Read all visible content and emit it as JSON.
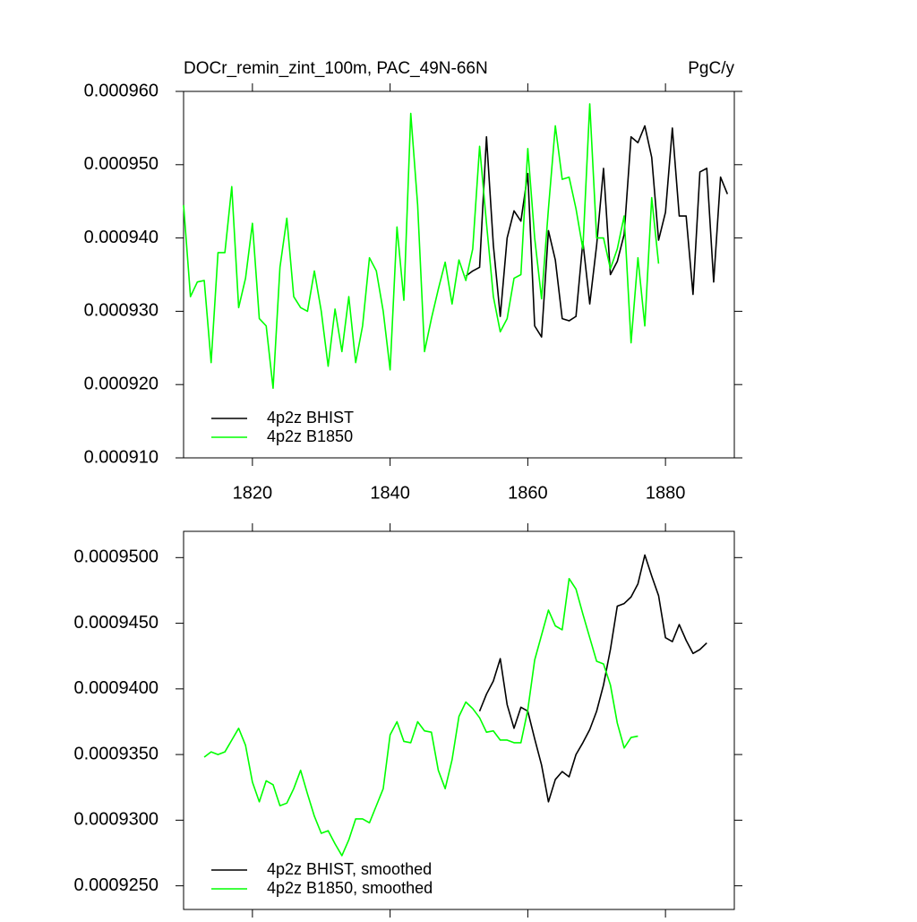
{
  "chart_data": [
    {
      "type": "line",
      "title": "DOCr_remin_zint_100m, PAC_49N-66N",
      "units": "PgC/y",
      "xlim": [
        1810,
        1890
      ],
      "xticks": [
        1820,
        1840,
        1860,
        1880
      ],
      "xtick_labels": true,
      "ylim": [
        0.00091,
        0.00096
      ],
      "yticks": [
        {
          "value": 0.00091,
          "label": "0.000910"
        },
        {
          "value": 0.00092,
          "label": "0.000920"
        },
        {
          "value": 0.00093,
          "label": "0.000930"
        },
        {
          "value": 0.00094,
          "label": "0.000940"
        },
        {
          "value": 0.00095,
          "label": "0.000950"
        },
        {
          "value": 0.00096,
          "label": "0.000960"
        }
      ],
      "legend": "lower left",
      "series": [
        {
          "name": "4p2z BHIST",
          "color": "#000000",
          "x": [
            1851,
            1852,
            1853,
            1854,
            1855,
            1856,
            1857,
            1858,
            1859,
            1860,
            1861,
            1862,
            1863,
            1864,
            1865,
            1866,
            1867,
            1868,
            1869,
            1870,
            1871,
            1872,
            1873,
            1874,
            1875,
            1876,
            1877,
            1878,
            1879,
            1880,
            1881,
            1882,
            1883,
            1884,
            1885,
            1886,
            1887,
            1888,
            1889
          ],
          "values": [
            0.0009348,
            0.0009355,
            0.000936,
            0.0009538,
            0.000939,
            0.0009293,
            0.00094,
            0.0009437,
            0.0009423,
            0.0009488,
            0.000928,
            0.0009265,
            0.000941,
            0.000937,
            0.000929,
            0.0009287,
            0.0009293,
            0.0009395,
            0.000931,
            0.000939,
            0.0009495,
            0.000935,
            0.0009368,
            0.0009405,
            0.0009538,
            0.000953,
            0.0009553,
            0.000951,
            0.0009397,
            0.0009435,
            0.000955,
            0.000943,
            0.000943,
            0.0009323,
            0.000949,
            0.0009495,
            0.000934,
            0.0009483,
            0.000946
          ]
        },
        {
          "name": "4p2z B1850",
          "color": "#00ff00",
          "x": [
            1810,
            1811,
            1812,
            1813,
            1814,
            1815,
            1816,
            1817,
            1818,
            1819,
            1820,
            1821,
            1822,
            1823,
            1824,
            1825,
            1826,
            1827,
            1828,
            1829,
            1830,
            1831,
            1832,
            1833,
            1834,
            1835,
            1836,
            1837,
            1838,
            1839,
            1840,
            1841,
            1842,
            1843,
            1844,
            1845,
            1846,
            1847,
            1848,
            1849,
            1850,
            1851,
            1852,
            1853,
            1854,
            1855,
            1856,
            1857,
            1858,
            1859,
            1860,
            1861,
            1862,
            1863,
            1864,
            1865,
            1866,
            1867,
            1868,
            1869,
            1870,
            1871,
            1872,
            1873,
            1874,
            1875,
            1876,
            1877,
            1878,
            1879
          ],
          "values": [
            0.0009445,
            0.000932,
            0.000934,
            0.0009342,
            0.000923,
            0.000938,
            0.000938,
            0.000947,
            0.0009305,
            0.0009345,
            0.000942,
            0.000929,
            0.000928,
            0.0009195,
            0.000936,
            0.0009427,
            0.000932,
            0.0009305,
            0.00093,
            0.0009355,
            0.00093,
            0.0009225,
            0.0009303,
            0.0009245,
            0.000932,
            0.000923,
            0.000928,
            0.0009373,
            0.0009355,
            0.00093,
            0.000922,
            0.0009415,
            0.0009315,
            0.000957,
            0.0009445,
            0.0009245,
            0.000929,
            0.000933,
            0.0009367,
            0.000931,
            0.000937,
            0.0009342,
            0.0009385,
            0.0009525,
            0.000942,
            0.000932,
            0.0009272,
            0.000929,
            0.0009345,
            0.000935,
            0.0009522,
            0.00094,
            0.0009317,
            0.000944,
            0.0009553,
            0.000948,
            0.0009483,
            0.000944,
            0.0009385,
            0.0009583,
            0.00094,
            0.00094,
            0.0009358,
            0.0009385,
            0.000943,
            0.0009257,
            0.0009373,
            0.000928,
            0.0009455,
            0.0009365
          ]
        }
      ]
    },
    {
      "type": "line",
      "xlim": [
        1810,
        1890
      ],
      "xticks": [
        1820,
        1840,
        1860,
        1880
      ],
      "xtick_labels": false,
      "ylim": [
        0.0009232,
        0.000952
      ],
      "yticks": [
        {
          "value": 0.000925,
          "label": "0.0009250"
        },
        {
          "value": 0.00093,
          "label": "0.0009300"
        },
        {
          "value": 0.000935,
          "label": "0.0009350"
        },
        {
          "value": 0.00094,
          "label": "0.0009400"
        },
        {
          "value": 0.000945,
          "label": "0.0009450"
        },
        {
          "value": 0.00095,
          "label": "0.0009500"
        }
      ],
      "legend": "lower left",
      "series": [
        {
          "name": "4p2z BHIST, smoothed",
          "color": "#000000",
          "x": [
            1853,
            1854,
            1855,
            1856,
            1857,
            1858,
            1859,
            1860,
            1861,
            1862,
            1863,
            1864,
            1865,
            1866,
            1867,
            1868,
            1869,
            1870,
            1871,
            1872,
            1873,
            1874,
            1875,
            1876,
            1877,
            1878,
            1879,
            1880,
            1881,
            1882,
            1883,
            1884,
            1885,
            1886
          ],
          "values": [
            0.0009383,
            0.0009396,
            0.0009406,
            0.0009423,
            0.0009388,
            0.000937,
            0.0009386,
            0.0009383,
            0.0009362,
            0.0009342,
            0.0009314,
            0.0009331,
            0.0009337,
            0.0009333,
            0.000935,
            0.0009359,
            0.0009369,
            0.0009383,
            0.0009403,
            0.000943,
            0.0009463,
            0.0009465,
            0.000947,
            0.000948,
            0.0009502,
            0.0009486,
            0.0009471,
            0.0009439,
            0.0009436,
            0.0009449,
            0.0009437,
            0.0009427,
            0.000943,
            0.0009435
          ]
        },
        {
          "name": "4p2z B1850, smoothed",
          "color": "#00ff00",
          "x": [
            1813,
            1814,
            1815,
            1816,
            1817,
            1818,
            1819,
            1820,
            1821,
            1822,
            1823,
            1824,
            1825,
            1826,
            1827,
            1828,
            1829,
            1830,
            1831,
            1832,
            1833,
            1834,
            1835,
            1836,
            1837,
            1838,
            1839,
            1840,
            1841,
            1842,
            1843,
            1844,
            1845,
            1846,
            1847,
            1848,
            1849,
            1850,
            1851,
            1852,
            1853,
            1854,
            1855,
            1856,
            1857,
            1858,
            1859,
            1860,
            1861,
            1862,
            1863,
            1864,
            1865,
            1866,
            1867,
            1868,
            1869,
            1870,
            1871,
            1872,
            1873,
            1874,
            1875,
            1876
          ],
          "values": [
            0.0009348,
            0.0009352,
            0.000935,
            0.0009352,
            0.0009361,
            0.000937,
            0.0009357,
            0.0009329,
            0.0009314,
            0.000933,
            0.0009327,
            0.0009311,
            0.0009313,
            0.0009324,
            0.0009338,
            0.000932,
            0.0009303,
            0.000929,
            0.0009292,
            0.0009282,
            0.0009273,
            0.0009285,
            0.0009301,
            0.0009301,
            0.0009298,
            0.0009311,
            0.0009324,
            0.0009365,
            0.0009375,
            0.000936,
            0.0009359,
            0.0009375,
            0.0009368,
            0.0009367,
            0.0009338,
            0.0009324,
            0.0009346,
            0.0009379,
            0.000939,
            0.0009385,
            0.0009378,
            0.0009367,
            0.0009368,
            0.0009361,
            0.0009361,
            0.0009359,
            0.0009359,
            0.0009384,
            0.0009422,
            0.0009441,
            0.000946,
            0.0009448,
            0.0009445,
            0.0009484,
            0.0009476,
            0.0009457,
            0.0009439,
            0.0009421,
            0.0009419,
            0.0009403,
            0.0009374,
            0.0009355,
            0.0009363,
            0.0009364
          ]
        }
      ]
    }
  ]
}
